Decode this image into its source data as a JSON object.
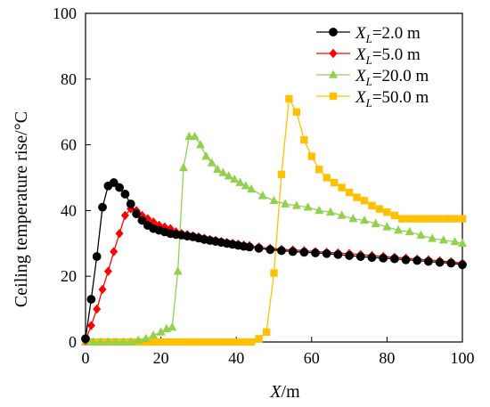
{
  "chart_data": {
    "type": "line",
    "xlabel_italic": "X",
    "xlabel_unit": "/m",
    "ylabel": "Ceiling temperature rise/°C",
    "xlim": [
      0,
      100
    ],
    "ylim": [
      0,
      100
    ],
    "x_ticks": [
      "0",
      "20",
      "40",
      "60",
      "80",
      "100"
    ],
    "y_ticks": [
      "0",
      "20",
      "40",
      "60",
      "80",
      "100"
    ],
    "x_tick_values": [
      0,
      20,
      40,
      60,
      80,
      100
    ],
    "y_tick_values": [
      0,
      20,
      40,
      60,
      80,
      100
    ],
    "legend_position": "top-right",
    "series": [
      {
        "name": "XL=2.0 m",
        "legend": {
          "italic": "X",
          "sub": "L",
          "rest": "=2.0 m"
        },
        "color": "#000000",
        "marker": "circle",
        "x": [
          0,
          1.5,
          3,
          4.5,
          6,
          7.5,
          9,
          10.5,
          12,
          13.5,
          15,
          16.5,
          18,
          19.5,
          21,
          22.5,
          24,
          25.5,
          27,
          28.5,
          30,
          31.5,
          33,
          34.5,
          36,
          37.5,
          39,
          40.5,
          42,
          43.5,
          46,
          49,
          52,
          55,
          58,
          61,
          64,
          67,
          70,
          73,
          76,
          79,
          82,
          85,
          88,
          91,
          94,
          97,
          100
        ],
        "y": [
          1,
          13,
          26,
          41,
          47.5,
          48.5,
          47,
          45,
          42,
          39,
          37,
          35.5,
          34.5,
          34,
          33.5,
          33,
          32.7,
          32.5,
          32.2,
          32,
          31.6,
          31.2,
          30.9,
          30.6,
          30.3,
          30,
          29.7,
          29.4,
          29.1,
          28.9,
          28.5,
          28.1,
          27.8,
          27.5,
          27.3,
          27.1,
          26.9,
          26.6,
          26.3,
          26,
          25.7,
          25.5,
          25.3,
          25,
          24.8,
          24.5,
          24.2,
          24,
          23.5
        ]
      },
      {
        "name": "XL=5.0 m",
        "legend": {
          "italic": "X",
          "sub": "L",
          "rest": "=5.0 m"
        },
        "color": "#ff0000",
        "marker": "diamond",
        "x": [
          0,
          1.5,
          3,
          4.5,
          6,
          7.5,
          9,
          10.5,
          12,
          13.5,
          15,
          16.5,
          18,
          19.5,
          21,
          22.5,
          24,
          25.5,
          27,
          28.5,
          30,
          31.5,
          33,
          34.5,
          36,
          37.5,
          39,
          40.5,
          42,
          43.5,
          46,
          49,
          52,
          55,
          58,
          61,
          64,
          67,
          70,
          73,
          76,
          79,
          82,
          85,
          88,
          91,
          94,
          97,
          100
        ],
        "y": [
          0.5,
          5,
          10,
          16,
          21.5,
          27.5,
          33,
          38.5,
          40.5,
          40,
          38.5,
          37.5,
          36.5,
          35.5,
          35,
          34.5,
          33.5,
          33,
          32.7,
          32.3,
          32,
          31.6,
          31.2,
          30.9,
          30.6,
          30.3,
          30,
          29.8,
          29.5,
          29.3,
          28.9,
          28.5,
          28.2,
          28,
          27.8,
          27.5,
          27.3,
          27.1,
          26.9,
          26.6,
          26.3,
          26,
          25.8,
          25.5,
          25.2,
          25,
          24.7,
          24.4,
          24
        ]
      },
      {
        "name": "XL=20.0 m",
        "legend": {
          "italic": "X",
          "sub": "L",
          "rest": "=20.0 m"
        },
        "color": "#92d050",
        "marker": "triangle",
        "x": [
          0,
          2,
          4,
          6,
          8,
          10,
          12,
          14,
          16,
          18,
          20,
          21.5,
          23,
          24.5,
          26,
          27.5,
          29,
          30.5,
          32,
          33.5,
          35,
          36.5,
          38,
          39.5,
          41,
          42.5,
          44,
          47,
          50,
          53,
          56,
          59,
          62,
          65,
          68,
          71,
          74,
          77,
          80,
          83,
          86,
          89,
          92,
          95,
          98,
          100
        ],
        "y": [
          0,
          0,
          0,
          0,
          0,
          0,
          0,
          0.5,
          1,
          2,
          3,
          4,
          4.5,
          21.5,
          53,
          62.5,
          62.5,
          60,
          56.5,
          54.5,
          52.5,
          51.5,
          50.5,
          49.5,
          48.5,
          47.5,
          46.5,
          44.5,
          43,
          42,
          41.5,
          41,
          40,
          39.5,
          38.5,
          37.5,
          37,
          36,
          35,
          34,
          33.5,
          32.5,
          31.5,
          31,
          30.5,
          30
        ]
      },
      {
        "name": "XL=50.0 m",
        "legend": {
          "italic": "X",
          "sub": "L",
          "rest": "=50.0 m"
        },
        "color": "#ffc000",
        "marker": "square",
        "x": [
          0,
          2,
          4,
          6,
          8,
          10,
          12,
          14,
          16,
          18,
          20,
          22,
          24,
          26,
          28,
          30,
          32,
          34,
          36,
          38,
          40,
          42,
          44,
          46,
          48,
          50,
          52,
          54,
          56,
          58,
          60,
          62,
          64,
          66,
          68,
          70,
          72,
          74,
          76,
          78,
          80,
          82,
          84,
          86,
          88,
          90,
          92,
          94,
          96,
          98,
          100
        ],
        "y": [
          0,
          0,
          0,
          0,
          0,
          0,
          0,
          0,
          0,
          0,
          0,
          0,
          0,
          0,
          0,
          0,
          0,
          0,
          0,
          0,
          0,
          0,
          0,
          1,
          3,
          21,
          51,
          74,
          70,
          61.5,
          56.5,
          52.5,
          50,
          48.5,
          47,
          45.5,
          44,
          43,
          41.5,
          40.5,
          39.5,
          38.5,
          37.5,
          37.5,
          37.5,
          37.5,
          37.5,
          37.5,
          37.5,
          37.5,
          37.5
        ]
      }
    ]
  }
}
